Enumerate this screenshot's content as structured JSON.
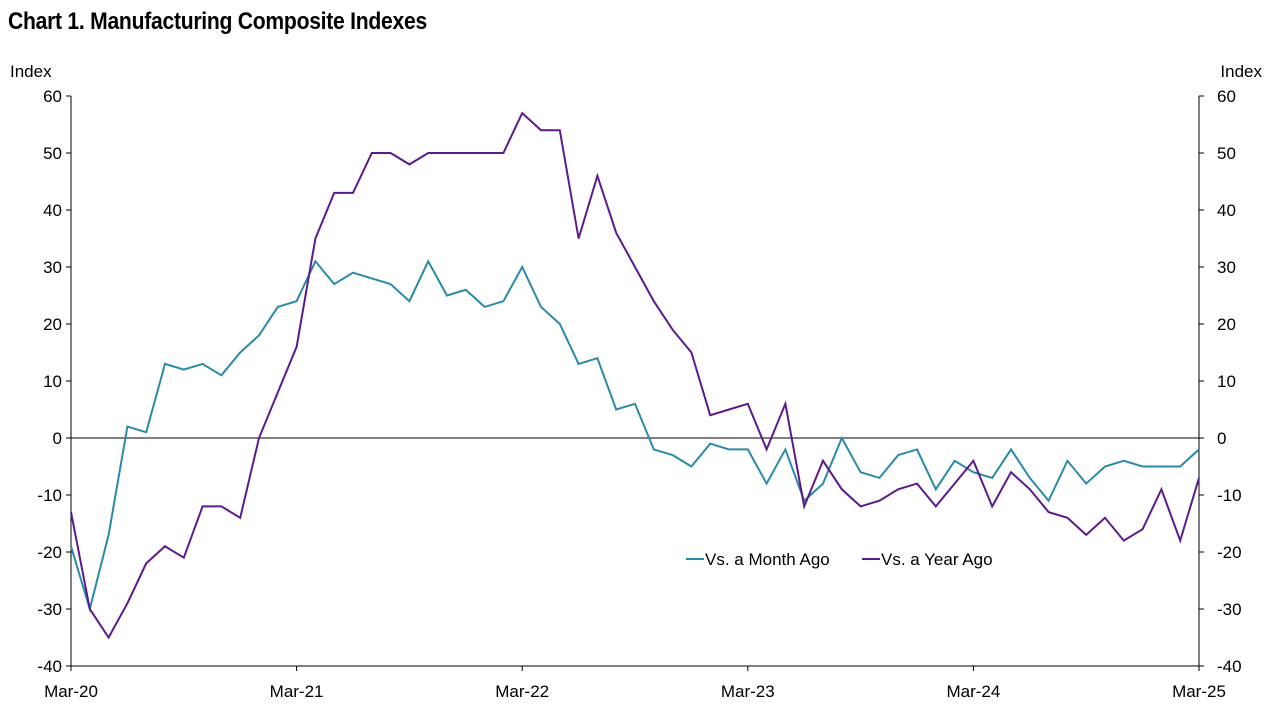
{
  "chart_data": {
    "type": "line",
    "title": "Chart 1. Manufacturing Composite Indexes",
    "ylabel_left": "Index",
    "ylabel_right": "Index",
    "ylim": [
      -40,
      60
    ],
    "yticks": [
      "60",
      "50",
      "40",
      "30",
      "20",
      "10",
      "0",
      "-10",
      "-20",
      "-30",
      "-40"
    ],
    "x_tick_labels": [
      "Mar-20",
      "Mar-21",
      "Mar-22",
      "Mar-23",
      "Mar-24",
      "Mar-25"
    ],
    "x_start": "Mar-20",
    "x_end": "Mar-25",
    "grid": false,
    "legend_position": "center-right",
    "series": [
      {
        "name": "Vs. a Month Ago",
        "color": "#2b8aa8",
        "values": [
          -19,
          -30,
          -17,
          2,
          1,
          13,
          12,
          13,
          11,
          15,
          18,
          23,
          24,
          31,
          27,
          29,
          28,
          27,
          24,
          31,
          25,
          26,
          23,
          24,
          30,
          23,
          20,
          13,
          14,
          5,
          6,
          -2,
          -3,
          -5,
          -1,
          -2,
          -2,
          -8,
          -2,
          -11,
          -8,
          0,
          -6,
          -7,
          -3,
          -2,
          -9,
          -4,
          -6,
          -7,
          -2,
          -7,
          -11,
          -4,
          -8,
          -5,
          -4,
          -5,
          -5,
          -5,
          -2
        ]
      },
      {
        "name": "Vs. a Year Ago",
        "color": "#5c1a8c",
        "values": [
          -13,
          -30,
          -35,
          -29,
          -22,
          -19,
          -21,
          -12,
          -12,
          -14,
          0,
          8,
          16,
          35,
          43,
          43,
          50,
          50,
          48,
          50,
          50,
          50,
          50,
          50,
          57,
          54,
          54,
          35,
          46,
          36,
          30,
          24,
          19,
          15,
          4,
          5,
          6,
          -2,
          6,
          -12,
          -4,
          -9,
          -12,
          -11,
          -9,
          -8,
          -12,
          -8,
          -4,
          -12,
          -6,
          -9,
          -13,
          -14,
          -17,
          -14,
          -18,
          -16,
          -9,
          -18,
          -7
        ]
      }
    ]
  }
}
